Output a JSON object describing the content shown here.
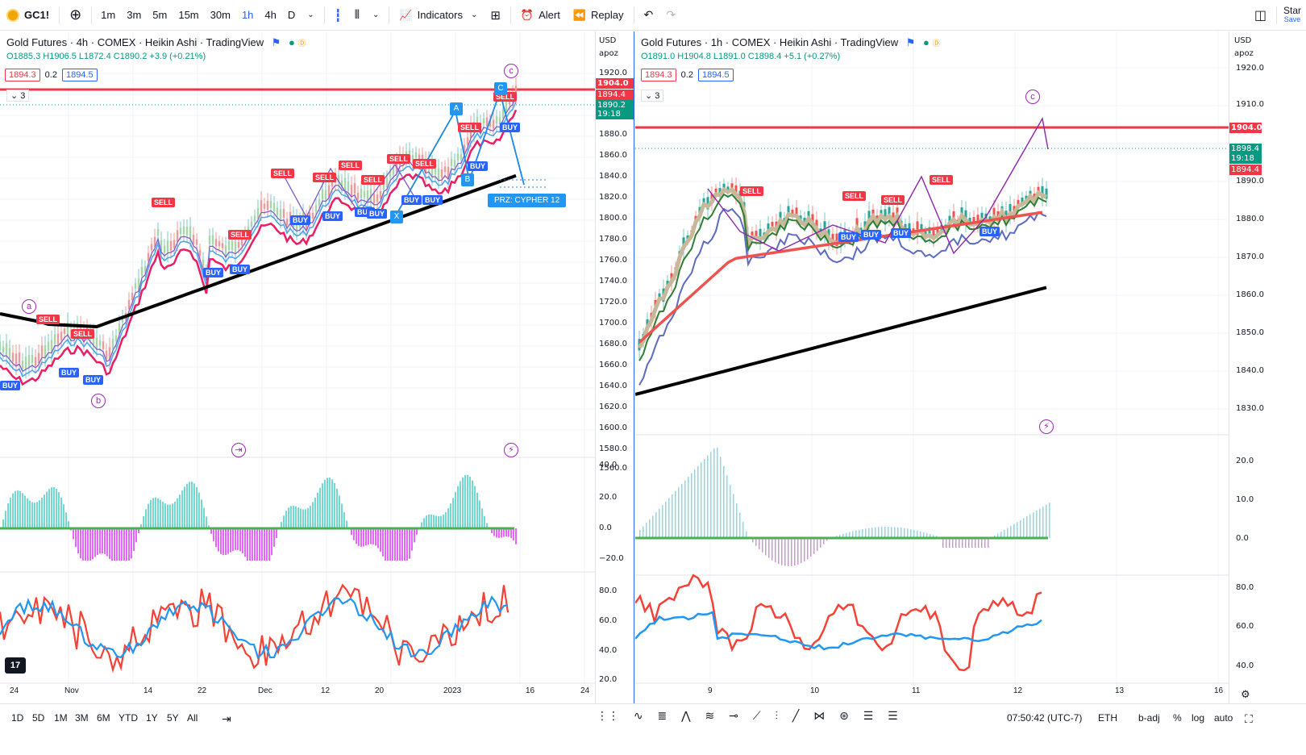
{
  "topbar": {
    "symbol": "GC1!",
    "timeframes": [
      "1m",
      "3m",
      "5m",
      "15m",
      "30m",
      "1h",
      "4h",
      "D"
    ],
    "active_timeframe": "1h",
    "indicators_label": "Indicators",
    "alert_label": "Alert",
    "replay_label": "Replay",
    "right_label": "Star",
    "save_label": "Save"
  },
  "left_chart": {
    "title": "Gold Futures · 4h · COMEX · Heikin Ashi · TradingView",
    "ohlc": {
      "o": "O1885.3",
      "h": "H1906.5",
      "l": "L1872.4",
      "c": "C1890.2",
      "chg": "+3.9 (+0.21%)"
    },
    "bid": "1894.3",
    "spread": "0.2",
    "ask": "1894.5",
    "collapse_count": "3",
    "currency": "USD",
    "scale_mode": "apoz",
    "price_labels": [
      "1920.0",
      "1880.0",
      "1860.0",
      "1840.0",
      "1820.0",
      "1800.0",
      "1780.0",
      "1760.0",
      "1740.0",
      "1720.0",
      "1700.0",
      "1680.0",
      "1660.0",
      "1640.0",
      "1620.0",
      "1600.0",
      "1580.0",
      "1560.0"
    ],
    "tag_red": "1904.0",
    "tag_pink": "1894.4",
    "tag_green": "1890.2",
    "tag_timer": "19:18",
    "osc_labels": [
      "40.0",
      "20.0",
      "0.0",
      "−20.0"
    ],
    "rsi_labels": [
      "80.0",
      "60.0",
      "40.0",
      "20.0"
    ],
    "time_labels": [
      "24",
      "Nov",
      "14",
      "22",
      "Dec",
      "12",
      "20",
      "2023",
      "16",
      "24"
    ],
    "przLabel": "PRZ: CYPHER 12",
    "wave_labels": [
      "a",
      "b",
      "c"
    ],
    "pattern_labels": [
      "A",
      "B",
      "C",
      "X"
    ]
  },
  "right_chart": {
    "title": "Gold Futures · 1h · COMEX · Heikin Ashi · TradingView",
    "ohlc": {
      "o": "O1891.0",
      "h": "H1904.8",
      "l": "L1891.0",
      "c": "C1898.4",
      "chg": "+5.1 (+0.27%)"
    },
    "bid": "1894.3",
    "spread": "0.2",
    "ask": "1894.5",
    "collapse_count": "3",
    "currency": "USD",
    "scale_mode": "apoz",
    "price_labels": [
      "1920.0",
      "1910.0",
      "1890.0",
      "1880.0",
      "1870.0",
      "1860.0",
      "1850.0",
      "1840.0",
      "1830.0"
    ],
    "tag_red": "1904.0",
    "tag_green": "1898.4",
    "tag_timer": "19:18",
    "tag_pink": "1894.4",
    "osc_labels": [
      "20.0",
      "10.0",
      "0.0"
    ],
    "rsi_labels": [
      "80.0",
      "60.0",
      "40.0"
    ],
    "time_labels": [
      "9",
      "10",
      "11",
      "12",
      "13",
      "16"
    ],
    "wave_label": "c"
  },
  "bottombar": {
    "ranges": [
      "1D",
      "5D",
      "1M",
      "3M",
      "6M",
      "YTD",
      "1Y",
      "5Y",
      "All"
    ],
    "clock": "07:50:42 (UTC-7)",
    "session": "ETH",
    "options": [
      "b-adj",
      "%",
      "log",
      "auto"
    ]
  }
}
